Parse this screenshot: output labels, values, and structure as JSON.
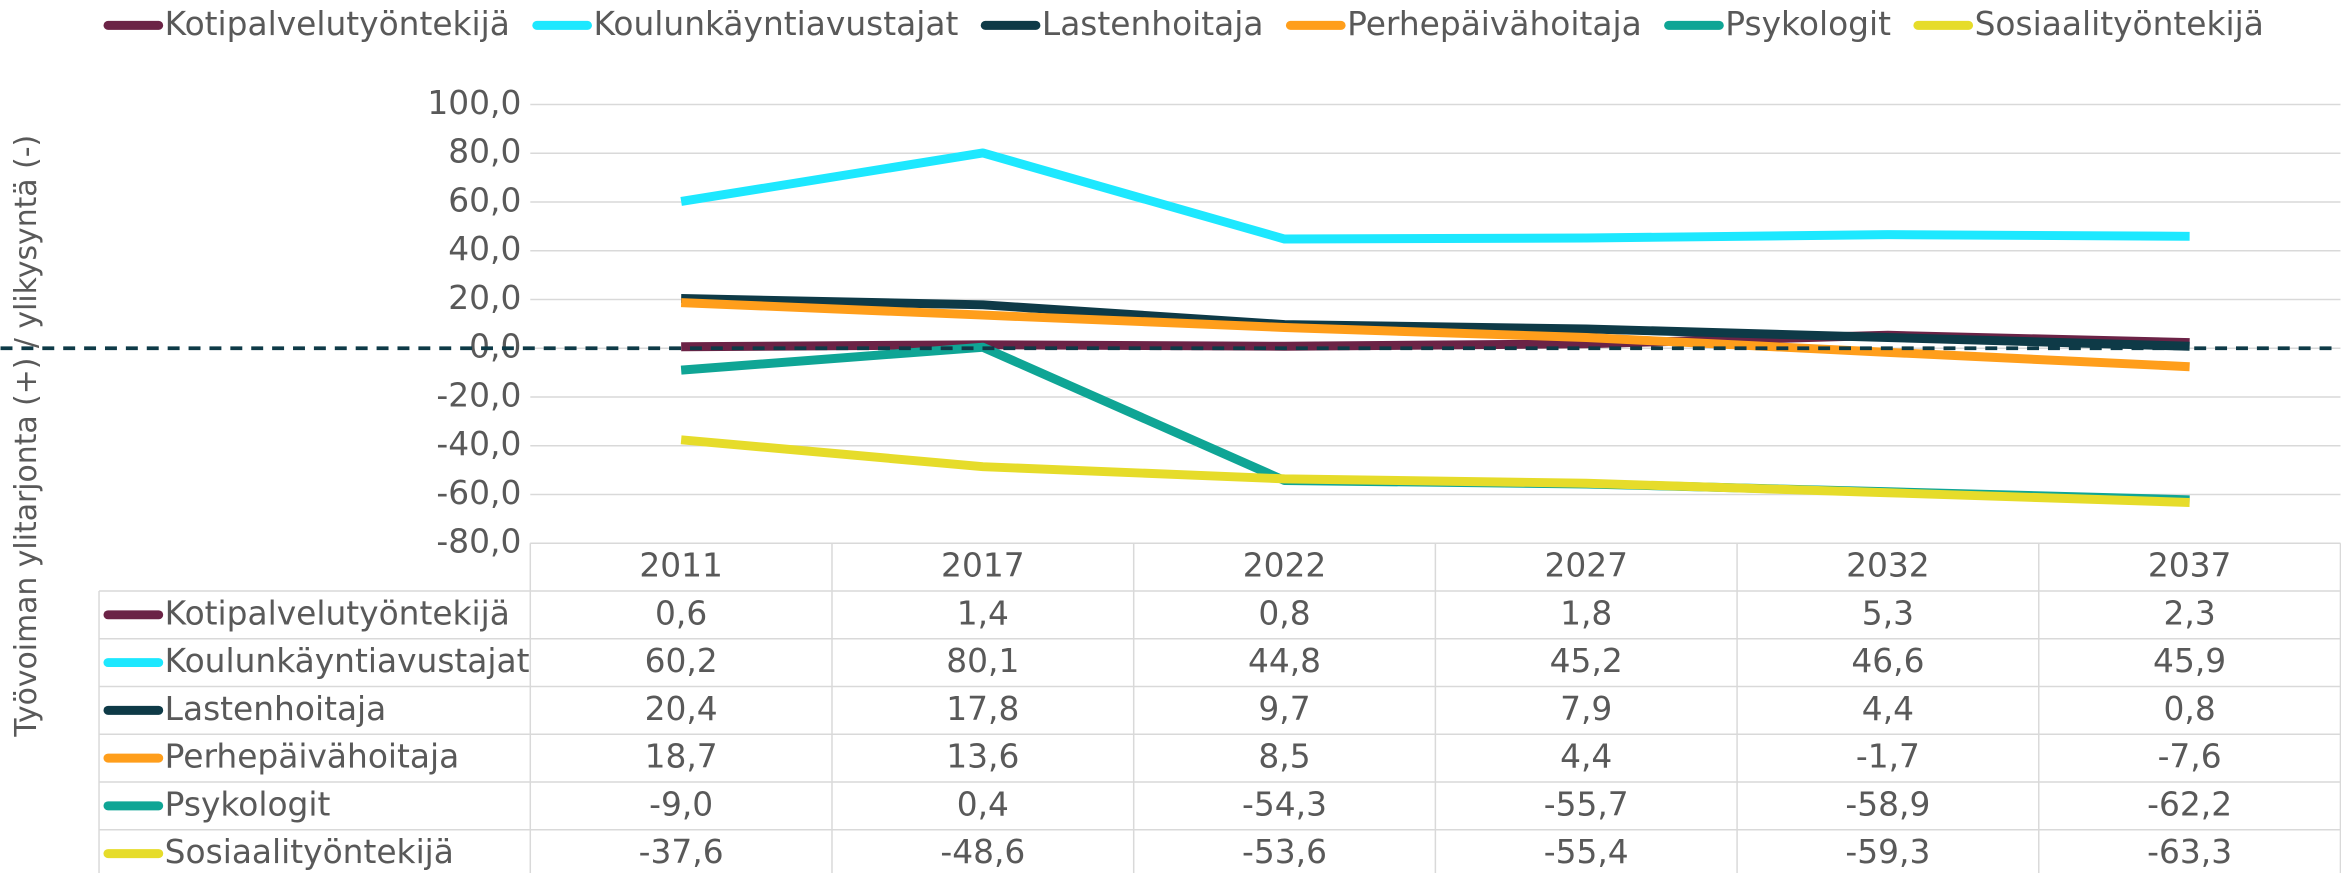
{
  "chart_data": {
    "type": "line",
    "y_axis_label": "Työvoiman ylitarjonta (+) / ylikysyntä (-)",
    "categories": [
      "2011",
      "2017",
      "2022",
      "2027",
      "2032",
      "2037"
    ],
    "ylim": [
      -80,
      100
    ],
    "yticks": [
      {
        "value": -80,
        "label": "-80,0"
      },
      {
        "value": -60,
        "label": "-60,0"
      },
      {
        "value": -40,
        "label": "-40,0"
      },
      {
        "value": -20,
        "label": "-20,0"
      },
      {
        "value": 0,
        "label": "0,0"
      },
      {
        "value": 20,
        "label": "20,0"
      },
      {
        "value": 40,
        "label": "40,0"
      },
      {
        "value": 60,
        "label": "60,0"
      },
      {
        "value": 80,
        "label": "80,0"
      },
      {
        "value": 100,
        "label": "100,0"
      }
    ],
    "grid": true,
    "legend": "top",
    "series": [
      {
        "name": "Kotipalvelutyöntekijä",
        "color": "#6b2346",
        "values": [
          0.6,
          1.4,
          0.8,
          1.8,
          5.3,
          2.3
        ],
        "value_labels": [
          "0,6",
          "1,4",
          "0,8",
          "1,8",
          "5,3",
          "2,3"
        ]
      },
      {
        "name": "Koulunkäyntiavustajat",
        "color": "#1de8ff",
        "values": [
          60.2,
          80.1,
          44.8,
          45.2,
          46.6,
          45.9
        ],
        "value_labels": [
          "60,2",
          "80,1",
          "44,8",
          "45,2",
          "46,6",
          "45,9"
        ]
      },
      {
        "name": "Lastenhoitaja",
        "color": "#0e3a47",
        "values": [
          20.4,
          17.8,
          9.7,
          7.9,
          4.4,
          0.8
        ],
        "value_labels": [
          "20,4",
          "17,8",
          "9,7",
          "7,9",
          "4,4",
          "0,8"
        ]
      },
      {
        "name": "Perhepäivähoitaja",
        "color": "#ff9e1b",
        "values": [
          18.7,
          13.6,
          8.5,
          4.4,
          -1.7,
          -7.6
        ],
        "value_labels": [
          "18,7",
          "13,6",
          "8,5",
          "4,4",
          "-1,7",
          "-7,6"
        ]
      },
      {
        "name": "Psykologit",
        "color": "#0fa595",
        "values": [
          -9.0,
          0.4,
          -54.3,
          -55.7,
          -58.9,
          -62.2
        ],
        "value_labels": [
          "-9,0",
          "0,4",
          "-54,3",
          "-55,7",
          "-58,9",
          "-62,2"
        ]
      },
      {
        "name": "Sosiaalityöntekijä",
        "color": "#e6dc2a",
        "values": [
          -37.6,
          -48.6,
          -53.6,
          -55.4,
          -59.3,
          -63.3
        ],
        "value_labels": [
          "-37,6",
          "-48,6",
          "-53,6",
          "-55,4",
          "-59,3",
          "-63,3"
        ]
      }
    ]
  }
}
